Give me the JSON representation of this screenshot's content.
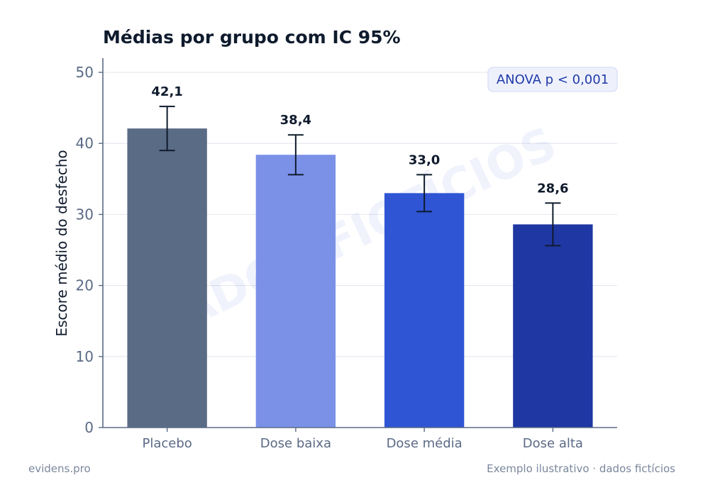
{
  "chart_data": {
    "type": "bar",
    "title": "Médias por grupo com IC 95%",
    "ylabel": "Escore médio do desfecho",
    "xlabel": "",
    "categories": [
      "Placebo",
      "Dose baixa",
      "Dose média",
      "Dose alta"
    ],
    "values": [
      42.1,
      38.4,
      33.0,
      28.6
    ],
    "value_labels": [
      "42,1",
      "38,4",
      "33,0",
      "28,6"
    ],
    "ci_lower": [
      39.0,
      35.6,
      30.4,
      25.6
    ],
    "ci_upper": [
      45.2,
      41.2,
      35.6,
      31.6
    ],
    "bar_colors": [
      "#5a6b85",
      "#7b91e8",
      "#2f55d4",
      "#1f37a3"
    ],
    "ylim": [
      0,
      52
    ],
    "yticks": [
      0,
      10,
      20,
      30,
      40,
      50
    ],
    "grid": true,
    "annotation": "ANOVA p < 0,001"
  },
  "watermark": "DADOS FICTÍCIOS",
  "footer": {
    "left": "evidens.pro",
    "right": "Exemplo ilustrativo · dados fictícios"
  }
}
